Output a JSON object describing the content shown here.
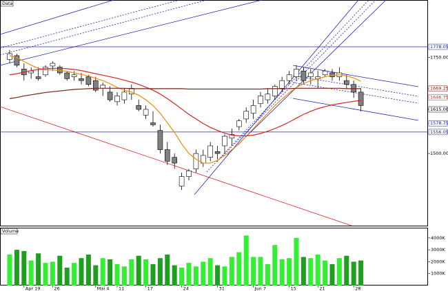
{
  "chart_data": {
    "type": "candlestick",
    "title": "Data",
    "categories": [
      null,
      null,
      "Apr 19",
      null,
      null,
      null,
      "26",
      null,
      null,
      null,
      null,
      null,
      "Mai 4",
      null,
      null,
      "11",
      null,
      null,
      null,
      "17",
      null,
      null,
      null,
      null,
      "24",
      null,
      null,
      null,
      null,
      "31",
      null,
      null,
      null,
      null,
      "Jun 7",
      null,
      null,
      null,
      null,
      "15",
      null,
      null,
      null,
      "21",
      null,
      null,
      null,
      null,
      "28",
      null
    ],
    "open": [
      1745,
      1755,
      1720,
      1710,
      1700,
      1705,
      1728,
      1725,
      1710,
      1700,
      1695,
      1700,
      1690,
      1670,
      1660,
      1635,
      1640,
      1655,
      1625,
      1600,
      1580,
      1560,
      1510,
      1490,
      1415,
      1440,
      1460,
      1475,
      1490,
      1505,
      1520,
      1540,
      1570,
      1590,
      1605,
      1630,
      1640,
      1650,
      1670,
      1690,
      1700,
      1715,
      1700,
      1695,
      1705,
      1710,
      1700,
      1690,
      1680,
      1660
    ],
    "high": [
      1770,
      1760,
      1735,
      1725,
      1725,
      1730,
      1740,
      1730,
      1715,
      1715,
      1710,
      1705,
      1700,
      1685,
      1675,
      1660,
      1670,
      1680,
      1640,
      1625,
      1610,
      1575,
      1530,
      1500,
      1450,
      1460,
      1510,
      1510,
      1530,
      1520,
      1550,
      1565,
      1590,
      1620,
      1640,
      1660,
      1670,
      1680,
      1700,
      1715,
      1730,
      1725,
      1720,
      1715,
      1720,
      1720,
      1725,
      1705,
      1690,
      1670
    ],
    "low": [
      1735,
      1725,
      1690,
      1695,
      1690,
      1700,
      1715,
      1705,
      1690,
      1690,
      1680,
      1675,
      1660,
      1650,
      1635,
      1625,
      1630,
      1640,
      1610,
      1590,
      1570,
      1500,
      1470,
      1460,
      1405,
      1430,
      1450,
      1465,
      1480,
      1485,
      1500,
      1520,
      1560,
      1580,
      1590,
      1620,
      1630,
      1640,
      1660,
      1680,
      1690,
      1680,
      1680,
      1670,
      1700,
      1690,
      1690,
      1670,
      1645,
      1610
    ],
    "close": [
      1760,
      1730,
      1705,
      1715,
      1695,
      1725,
      1735,
      1710,
      1695,
      1705,
      1690,
      1680,
      1665,
      1678,
      1640,
      1650,
      1660,
      1670,
      1615,
      1615,
      1575,
      1510,
      1480,
      1475,
      1440,
      1455,
      1500,
      1495,
      1520,
      1500,
      1545,
      1550,
      1585,
      1610,
      1625,
      1650,
      1655,
      1675,
      1690,
      1705,
      1720,
      1690,
      1710,
      1700,
      1715,
      1700,
      1710,
      1680,
      1660,
      1625
    ],
    "up_color": "#ffffff",
    "down_color": "#808080",
    "lines": [
      {
        "color": "#f08a00",
        "values": [
          1755,
          1750,
          1740,
          1730,
          1722,
          1718,
          1718,
          1716,
          1714,
          1710,
          1706,
          1702,
          1696,
          1690,
          1682,
          1672,
          1665,
          1660,
          1652,
          1640,
          1625,
          1605,
          1580,
          1555,
          1525,
          1500,
          1485,
          1475,
          1475,
          1482,
          1495,
          1510,
          1525,
          1545,
          1565,
          1585,
          1605,
          1625,
          1642,
          1658,
          1672,
          1682,
          1690,
          1695,
          1700,
          1703,
          1705,
          1702,
          1697,
          1688
        ]
      },
      {
        "color": "#e02020",
        "values": [
          1705,
          1708,
          1712,
          1716,
          1719,
          1721,
          1722,
          1722,
          1721,
          1719,
          1716,
          1712,
          1708,
          1704,
          1700,
          1696,
          1691,
          1686,
          1680,
          1673,
          1665,
          1655,
          1643,
          1630,
          1616,
          1602,
          1590,
          1578,
          1568,
          1560,
          1553,
          1548,
          1546,
          1546,
          1548,
          1552,
          1558,
          1565,
          1573,
          1582,
          1592,
          1602,
          1610,
          1617,
          1622,
          1627,
          1630,
          1633,
          1636,
          1638
        ]
      },
      {
        "color": "#7a1e14",
        "values": [
          1643,
          1646,
          1650,
          1653,
          1656,
          1659,
          1661,
          1663,
          1665,
          1667,
          1668,
          1669,
          1670,
          1670,
          1670,
          1670,
          1670,
          1669,
          1669,
          1669,
          1669,
          1669,
          1669,
          1669,
          1669,
          1668,
          1668,
          1668,
          1668,
          1668,
          1668,
          1668,
          1668,
          1668,
          1668,
          1668,
          1669,
          1669,
          1669,
          1669,
          1670,
          1670,
          1670,
          1670,
          1670,
          1670,
          1670,
          1669,
          1669,
          1669
        ]
      }
    ],
    "ylim": [
      1312,
      1900
    ],
    "yticks": [
      {
        "value": 1500,
        "label": "1500.00"
      },
      {
        "value": 1750,
        "label": "1750.00"
      }
    ],
    "markers": [
      {
        "value": 1778.05,
        "label": "1778.05",
        "color": "#2020c0",
        "hline": true
      },
      {
        "value": 1669.25,
        "label": "1669.25",
        "color": "#7a1e14",
        "hline": false
      },
      {
        "value": 1646.75,
        "label": "1646.75",
        "color": "#e02020",
        "hline": false
      },
      {
        "value": 1615,
        "label": "1615.00",
        "color": "#000000",
        "hline": false
      },
      {
        "value": 1578.75,
        "label": "1578.75",
        "color": "#2020c0",
        "hline": false
      },
      {
        "value": 1556.05,
        "label": "1556.05",
        "color": "#2020c0",
        "hline": true
      }
    ],
    "volume": {
      "title": "Volume",
      "values": [
        2600,
        3000,
        2900,
        2100,
        2700,
        1900,
        2000,
        2500,
        1500,
        1900,
        2300,
        2600,
        1700,
        2300,
        2200,
        1800,
        1600,
        2200,
        2500,
        2200,
        1800,
        2300,
        2600,
        1700,
        1500,
        1900,
        1600,
        2000,
        2300,
        1700,
        1600,
        2400,
        2800,
        4200,
        2400,
        2400,
        1800,
        3400,
        2200,
        2300,
        4000,
        2400,
        2300,
        2600,
        2100,
        1800,
        2300,
        2500,
        2000,
        2100
      ],
      "up_color": "#33ee33",
      "down_color": "#1f9f1f",
      "ylim": [
        0,
        4800
      ],
      "yticks": [
        {
          "value": 1000,
          "label": "1000K"
        },
        {
          "value": 2000,
          "label": "2000K"
        },
        {
          "value": 3000,
          "label": "3000K"
        },
        {
          "value": 4000,
          "label": "4000K"
        }
      ]
    }
  }
}
